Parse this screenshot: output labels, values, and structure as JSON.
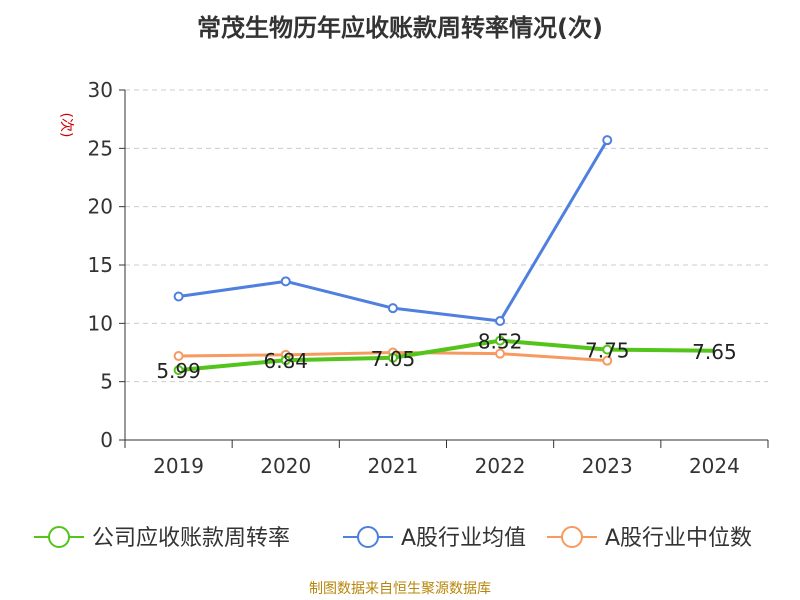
{
  "title": "常茂生物历年应收账款周转率情况(次)",
  "footer": "制图数据来自恒生聚源数据库",
  "colors": {
    "company": "#52c41a",
    "average": "#4f7fdf",
    "median": "#f79a5f",
    "unit": "#cc0000",
    "grid": "#cccccc",
    "axis": "#333333"
  },
  "chart_data": {
    "type": "line",
    "ylabel": "(次)",
    "ylim": [
      0,
      30
    ],
    "yticks": [
      0,
      5,
      10,
      15,
      20,
      25,
      30
    ],
    "categories": [
      "2019",
      "2020",
      "2021",
      "2022",
      "2023",
      "2024"
    ],
    "grid": true,
    "legend_position": "bottom",
    "series": [
      {
        "name": "公司应收账款周转率",
        "color": "#52c41a",
        "values": [
          5.99,
          6.84,
          7.05,
          8.52,
          7.75,
          7.65
        ],
        "labels": [
          "5.99",
          "6.84",
          "7.05",
          "8.52",
          "7.75",
          "7.65"
        ]
      },
      {
        "name": "A股行业均值",
        "color": "#4f7fdf",
        "values": [
          12.3,
          13.6,
          11.3,
          10.2,
          25.7,
          null
        ]
      },
      {
        "name": "A股行业中位数",
        "color": "#f79a5f",
        "values": [
          7.2,
          7.3,
          7.5,
          7.4,
          6.8,
          null
        ]
      }
    ]
  }
}
